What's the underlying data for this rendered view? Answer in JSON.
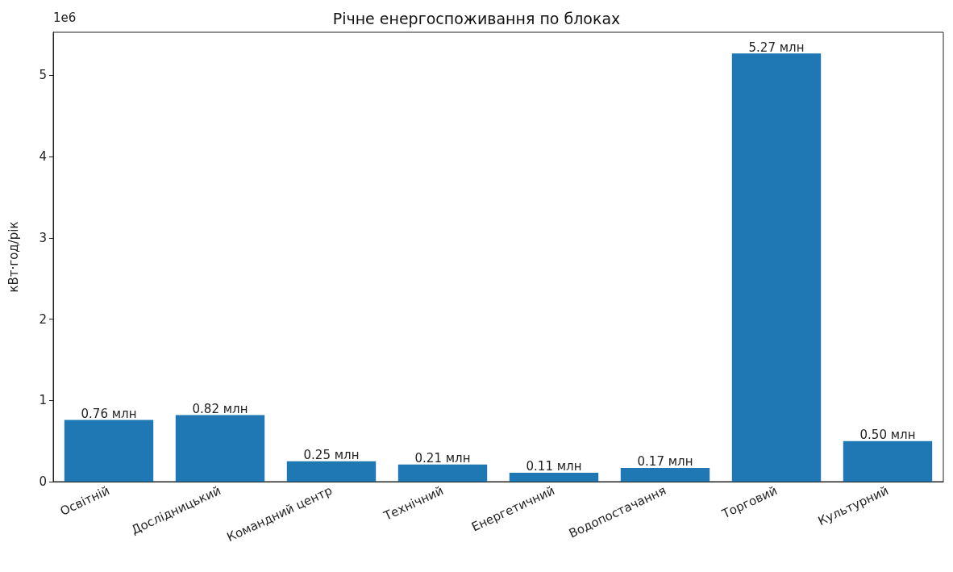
{
  "chart_data": {
    "type": "bar",
    "title": "Річне енергоспоживання по блоках",
    "ylabel": "кВт·год/рік",
    "annotations": [
      "1e6"
    ],
    "categories": [
      "Освітній",
      "Дослідницький",
      "Командний центр",
      "Технічний",
      "Енергетичний",
      "Водопостачання",
      "Торговий",
      "Культурний"
    ],
    "values": [
      0.76,
      0.82,
      0.25,
      0.21,
      0.11,
      0.17,
      5.27,
      0.5
    ],
    "value_labels": [
      "0.76 млн",
      "0.82 млн",
      "0.25 млн",
      "0.21 млн",
      "0.11 млн",
      "0.17 млн",
      "5.27 млн",
      "0.50 млн"
    ],
    "color": "#1f77b4",
    "ylim": [
      0,
      5.53
    ],
    "yticks": [
      0,
      1,
      2,
      3,
      4,
      5
    ],
    "grid": false
  }
}
